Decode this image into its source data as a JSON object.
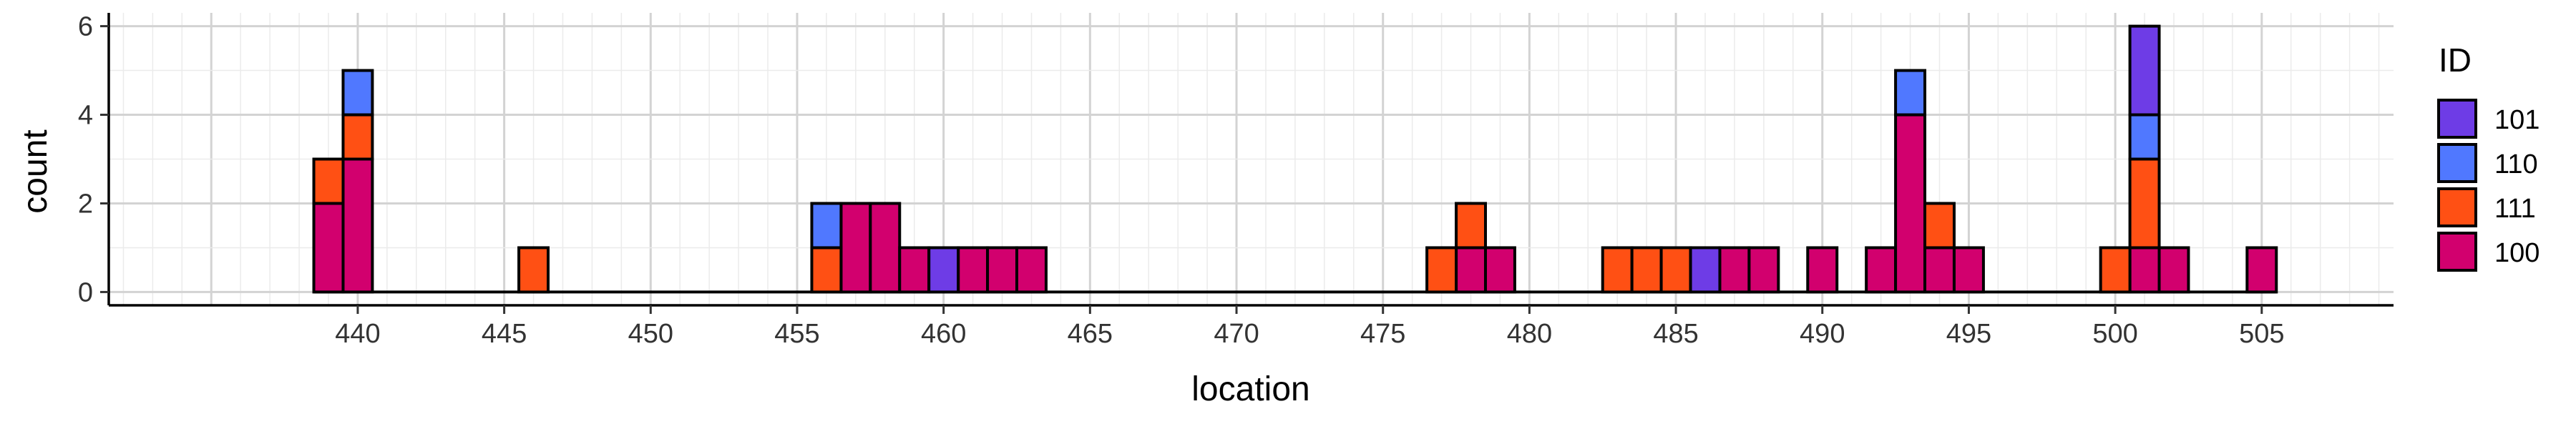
{
  "chart_data": {
    "type": "bar",
    "stacked": true,
    "xlabel": "location",
    "ylabel": "count",
    "xlim": [
      431.5,
      509.5
    ],
    "ylim": [
      -0.3,
      6.3
    ],
    "x_ticks": [
      440,
      445,
      450,
      455,
      460,
      465,
      470,
      475,
      480,
      485,
      490,
      495,
      500,
      505
    ],
    "y_ticks": [
      0,
      2,
      4,
      6
    ],
    "grid": true,
    "legend": {
      "title": "ID",
      "position": "right",
      "entries": [
        "101",
        "110",
        "111",
        "100"
      ]
    },
    "stack_order_bottom_to_top": [
      "100",
      "111",
      "110",
      "101"
    ],
    "series": [
      {
        "name": "100",
        "color": "#D2006E",
        "points": [
          [
            439,
            2
          ],
          [
            440,
            3
          ],
          [
            456,
            0
          ],
          [
            457,
            2
          ],
          [
            458,
            2
          ],
          [
            459,
            1
          ],
          [
            461,
            1
          ],
          [
            462,
            1
          ],
          [
            463,
            1
          ],
          [
            478,
            1
          ],
          [
            479,
            1
          ],
          [
            487,
            1
          ],
          [
            488,
            1
          ],
          [
            490,
            1
          ],
          [
            492,
            1
          ],
          [
            493,
            4
          ],
          [
            494,
            1
          ],
          [
            495,
            1
          ],
          [
            501,
            1
          ],
          [
            502,
            1
          ],
          [
            505,
            1
          ]
        ]
      },
      {
        "name": "111",
        "color": "#FF5014",
        "points": [
          [
            439,
            1
          ],
          [
            440,
            1
          ],
          [
            446,
            1
          ],
          [
            456,
            1
          ],
          [
            477,
            1
          ],
          [
            478,
            1
          ],
          [
            483,
            1
          ],
          [
            484,
            1
          ],
          [
            485,
            1
          ],
          [
            494,
            1
          ],
          [
            500,
            1
          ],
          [
            501,
            2
          ]
        ]
      },
      {
        "name": "110",
        "color": "#5078FF",
        "points": [
          [
            440,
            1
          ],
          [
            456,
            1
          ],
          [
            493,
            1
          ],
          [
            501,
            1
          ]
        ]
      },
      {
        "name": "101",
        "color": "#6E3CE6",
        "points": [
          [
            460,
            1
          ],
          [
            486,
            1
          ],
          [
            501,
            2
          ]
        ]
      }
    ]
  }
}
